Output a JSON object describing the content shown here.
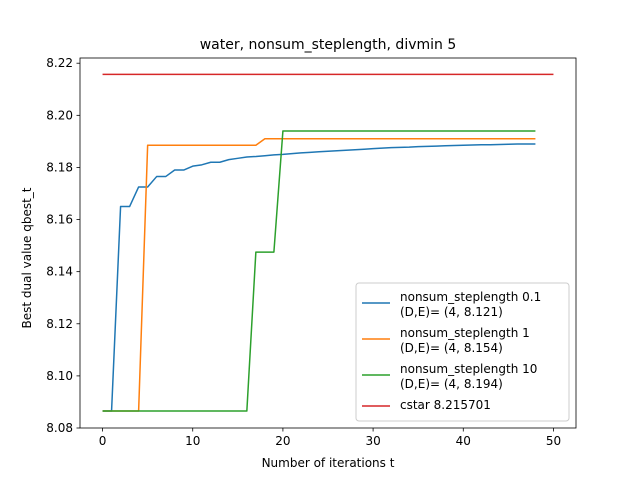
{
  "chart_data": {
    "type": "line",
    "title": "water, nonsum_steplength, divmin 5",
    "xlabel": "Number of iterations t",
    "ylabel": "Best dual value qbest_t",
    "xlim": [
      -2.5,
      52.5
    ],
    "ylim": [
      8.08,
      8.222
    ],
    "xticks": [
      0,
      10,
      20,
      30,
      40,
      50
    ],
    "yticks": [
      8.08,
      8.1,
      8.12,
      8.14,
      8.16,
      8.18,
      8.2,
      8.22
    ],
    "ytick_labels": [
      "8.08",
      "8.10",
      "8.12",
      "8.14",
      "8.16",
      "8.18",
      "8.20",
      "8.22"
    ],
    "grid": false,
    "legend_position": "lower-right",
    "series": [
      {
        "label_lines": [
          "nonsum_steplength 0.1",
          "(D,E)= (4, 8.121)"
        ],
        "color": "#1f77b4",
        "x": [
          0,
          1,
          2,
          3,
          4,
          5,
          6,
          7,
          8,
          9,
          10,
          11,
          12,
          13,
          14,
          15,
          16,
          17,
          18,
          19,
          20,
          21,
          22,
          23,
          24,
          25,
          26,
          27,
          28,
          29,
          30,
          31,
          32,
          33,
          34,
          35,
          36,
          37,
          38,
          39,
          40,
          41,
          42,
          43,
          44,
          45,
          46,
          47,
          48
        ],
        "y": [
          8.0865,
          8.0865,
          8.165,
          8.165,
          8.1725,
          8.1725,
          8.1765,
          8.1765,
          8.179,
          8.179,
          8.1805,
          8.181,
          8.182,
          8.182,
          8.183,
          8.1835,
          8.184,
          8.1842,
          8.1845,
          8.1848,
          8.185,
          8.1853,
          8.1856,
          8.1858,
          8.186,
          8.1862,
          8.1864,
          8.1866,
          8.1868,
          8.187,
          8.1872,
          8.1874,
          8.1876,
          8.1877,
          8.1878,
          8.188,
          8.1881,
          8.1882,
          8.1883,
          8.1884,
          8.1885,
          8.1886,
          8.1887,
          8.1887,
          8.1888,
          8.1889,
          8.189,
          8.189,
          8.189
        ]
      },
      {
        "label_lines": [
          "nonsum_steplength 1",
          "(D,E)= (4, 8.154)"
        ],
        "color": "#ff7f0e",
        "x": [
          0,
          1,
          2,
          3,
          4,
          5,
          6,
          7,
          8,
          9,
          10,
          11,
          12,
          13,
          14,
          15,
          16,
          17,
          18,
          19,
          20,
          21,
          22,
          23,
          24,
          25,
          26,
          27,
          28,
          29,
          30,
          31,
          32,
          33,
          34,
          35,
          36,
          37,
          38,
          39,
          40,
          41,
          42,
          43,
          44,
          45,
          46,
          47,
          48
        ],
        "y": [
          8.0865,
          8.0865,
          8.0865,
          8.0865,
          8.0865,
          8.1885,
          8.1885,
          8.1885,
          8.1885,
          8.1885,
          8.1885,
          8.1885,
          8.1885,
          8.1885,
          8.1885,
          8.1885,
          8.1885,
          8.1885,
          8.191,
          8.191,
          8.191,
          8.191,
          8.191,
          8.191,
          8.191,
          8.191,
          8.191,
          8.191,
          8.191,
          8.191,
          8.191,
          8.191,
          8.191,
          8.191,
          8.191,
          8.191,
          8.191,
          8.191,
          8.191,
          8.191,
          8.191,
          8.191,
          8.191,
          8.191,
          8.191,
          8.191,
          8.191,
          8.191,
          8.191
        ]
      },
      {
        "label_lines": [
          "nonsum_steplength 10",
          "(D,E)= (4, 8.194)"
        ],
        "color": "#2ca02c",
        "x": [
          0,
          1,
          2,
          3,
          4,
          5,
          6,
          7,
          8,
          9,
          10,
          11,
          12,
          13,
          14,
          15,
          16,
          17,
          18,
          19,
          20,
          21,
          22,
          23,
          24,
          25,
          26,
          27,
          28,
          29,
          30,
          31,
          32,
          33,
          34,
          35,
          36,
          37,
          38,
          39,
          40,
          41,
          42,
          43,
          44,
          45,
          46,
          47,
          48
        ],
        "y": [
          8.0865,
          8.0865,
          8.0865,
          8.0865,
          8.0865,
          8.0865,
          8.0865,
          8.0865,
          8.0865,
          8.0865,
          8.0865,
          8.0865,
          8.0865,
          8.0865,
          8.0865,
          8.0865,
          8.0865,
          8.1475,
          8.1475,
          8.1475,
          8.194,
          8.194,
          8.194,
          8.194,
          8.194,
          8.194,
          8.194,
          8.194,
          8.194,
          8.194,
          8.194,
          8.194,
          8.194,
          8.194,
          8.194,
          8.194,
          8.194,
          8.194,
          8.194,
          8.194,
          8.194,
          8.194,
          8.194,
          8.194,
          8.194,
          8.194,
          8.194,
          8.194,
          8.194
        ]
      },
      {
        "label_lines": [
          "cstar 8.215701"
        ],
        "color": "#d62728",
        "x": [
          0,
          50
        ],
        "y": [
          8.215701,
          8.215701
        ]
      }
    ]
  }
}
